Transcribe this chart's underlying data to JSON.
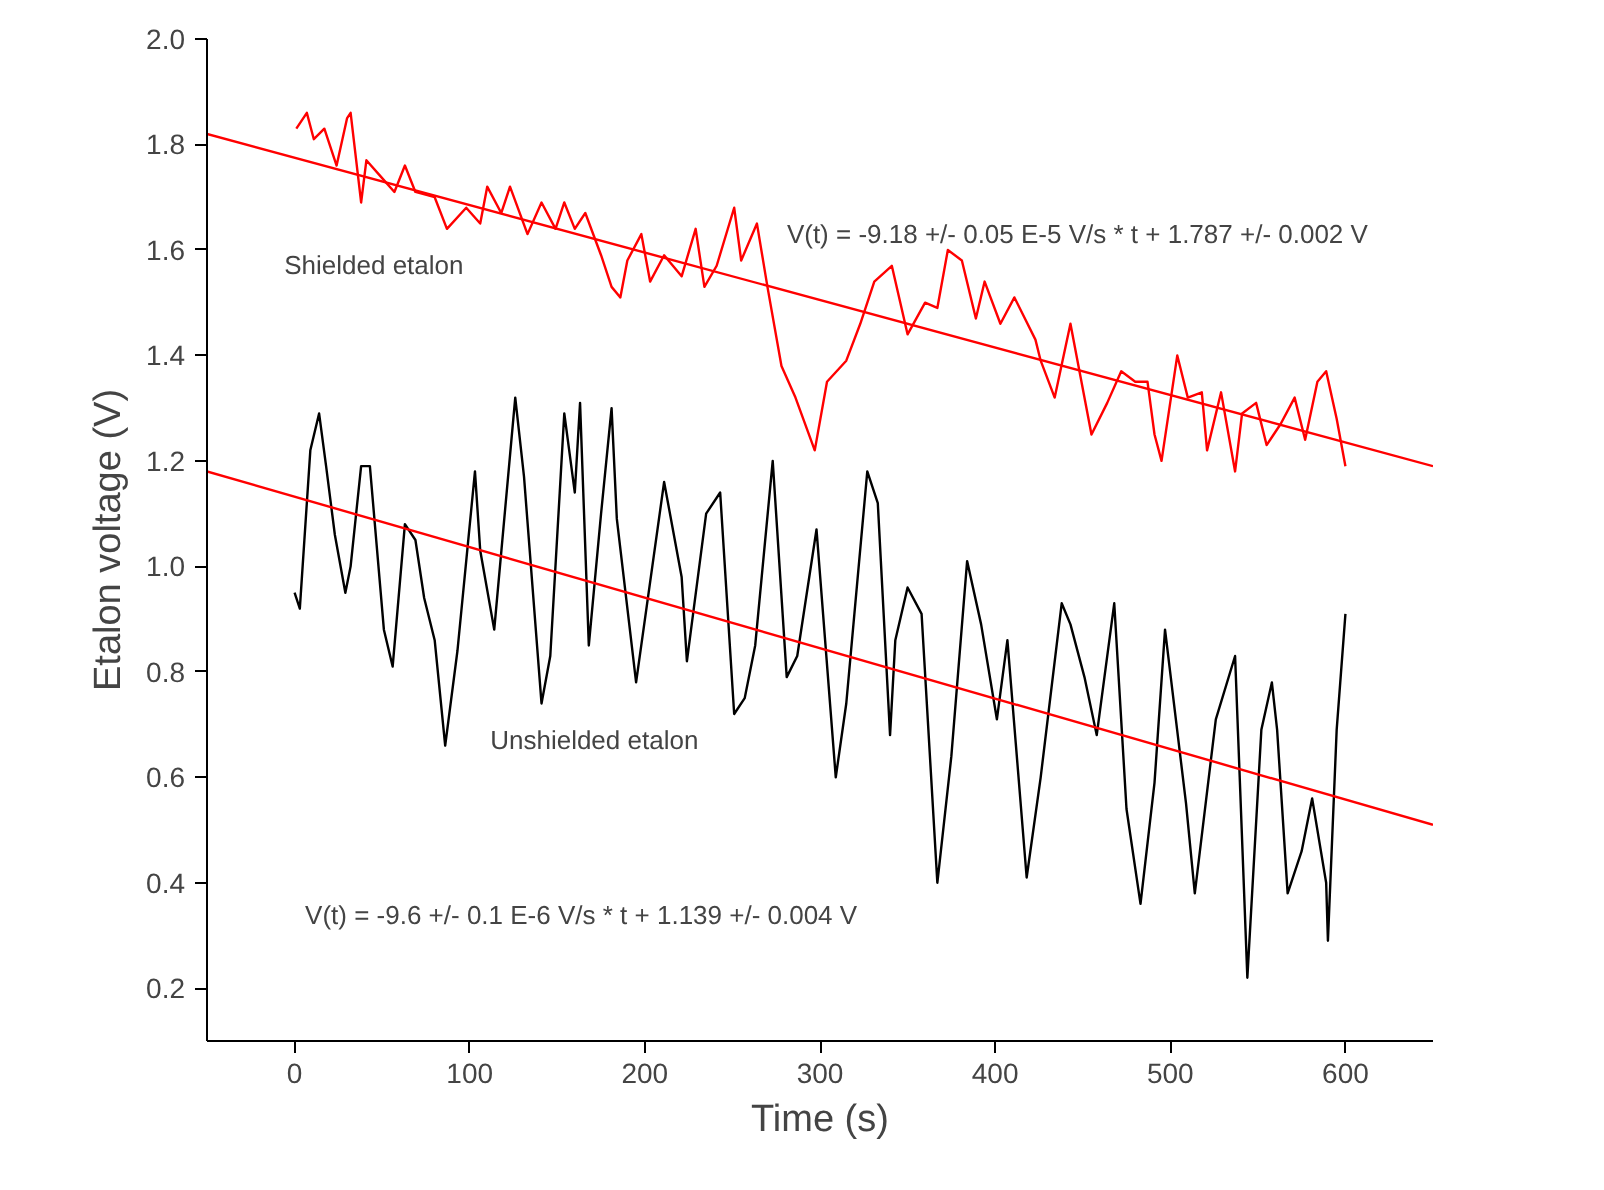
{
  "chart_data": {
    "type": "line",
    "xlabel": "Time (s)",
    "ylabel": "Etalon voltage (V)",
    "xlim": [
      -50,
      650
    ],
    "xticks": [
      0,
      100,
      200,
      300,
      400,
      500,
      600
    ],
    "ylim": [
      0.1,
      2.0
    ],
    "yticks": [
      0.2,
      0.4,
      0.6,
      0.8,
      {
        "value": 1.0,
        "label": "1.0"
      },
      1.2,
      1.4,
      1.6,
      1.8,
      {
        "value": 2.0,
        "label": "2.0"
      }
    ],
    "grid": false,
    "marker": "none",
    "line_style": "solid",
    "series": [
      {
        "color": "#ff0000",
        "x": [
          1,
          7,
          11,
          17,
          24,
          30,
          32,
          38,
          41,
          49,
          57,
          63,
          69,
          80,
          87,
          98,
          106,
          110,
          118,
          123,
          133,
          141,
          149,
          154,
          160,
          166,
          175,
          181,
          186,
          190,
          198,
          203,
          211,
          221,
          229,
          234,
          241,
          251,
          255,
          264,
          270,
          278,
          286,
          297,
          304,
          315,
          323,
          331,
          341,
          350,
          360,
          367,
          373,
          381,
          389,
          394,
          403,
          411,
          423,
          426,
          434,
          443,
          455,
          464,
          472,
          480,
          487,
          491,
          495,
          504,
          510,
          518,
          521,
          529,
          537,
          541,
          549,
          555,
          563,
          571,
          577,
          584,
          589,
          595,
          600
        ],
        "values": [
          1.83,
          1.86,
          1.81,
          1.83,
          1.76,
          1.85,
          1.86,
          1.69,
          1.77,
          1.74,
          1.71,
          1.76,
          1.71,
          1.7,
          1.64,
          1.68,
          1.65,
          1.72,
          1.67,
          1.72,
          1.63,
          1.69,
          1.64,
          1.69,
          1.64,
          1.67,
          1.59,
          1.53,
          1.51,
          1.58,
          1.63,
          1.54,
          1.59,
          1.55,
          1.64,
          1.53,
          1.57,
          1.68,
          1.58,
          1.65,
          1.53,
          1.38,
          1.32,
          1.22,
          1.35,
          1.39,
          1.46,
          1.54,
          1.57,
          1.44,
          1.5,
          1.49,
          1.6,
          1.58,
          1.47,
          1.54,
          1.46,
          1.51,
          1.43,
          1.39,
          1.32,
          1.46,
          1.25,
          1.31,
          1.37,
          1.35,
          1.35,
          1.25,
          1.2,
          1.4,
          1.32,
          1.33,
          1.22,
          1.33,
          1.18,
          1.29,
          1.31,
          1.23,
          1.27,
          1.32,
          1.24,
          1.35,
          1.37,
          1.28,
          1.19
        ]
      },
      {
        "color": "#000000",
        "x": [
          0,
          3,
          9,
          14,
          18,
          23,
          29,
          32,
          38,
          43,
          51,
          56,
          63,
          69,
          74,
          80,
          86,
          93,
          103,
          106,
          114,
          126,
          131,
          141,
          146,
          154,
          160,
          163,
          168,
          175,
          181,
          184,
          195,
          211,
          221,
          224,
          235,
          243,
          251,
          257,
          263,
          273,
          281,
          287,
          298,
          309,
          315,
          327,
          333,
          340,
          343,
          350,
          358,
          367,
          375,
          384,
          392,
          401,
          407,
          418,
          426,
          438,
          443,
          451,
          458,
          468,
          475,
          483,
          491,
          497,
          509,
          514,
          526,
          537,
          544,
          552,
          558,
          561,
          567,
          575,
          581,
          589,
          590,
          595,
          600
        ],
        "values": [
          0.95,
          0.92,
          1.22,
          1.29,
          1.19,
          1.06,
          0.95,
          1.0,
          1.19,
          1.19,
          0.88,
          0.81,
          1.08,
          1.05,
          0.94,
          0.86,
          0.66,
          0.84,
          1.18,
          1.03,
          0.88,
          1.32,
          1.17,
          0.74,
          0.83,
          1.29,
          1.14,
          1.31,
          0.85,
          1.1,
          1.3,
          1.09,
          0.78,
          1.16,
          0.98,
          0.82,
          1.1,
          1.14,
          0.72,
          0.75,
          0.85,
          1.2,
          0.79,
          0.83,
          1.07,
          0.6,
          0.74,
          1.18,
          1.12,
          0.68,
          0.86,
          0.96,
          0.91,
          0.4,
          0.64,
          1.01,
          0.89,
          0.71,
          0.86,
          0.41,
          0.6,
          0.93,
          0.89,
          0.79,
          0.68,
          0.93,
          0.54,
          0.36,
          0.59,
          0.88,
          0.55,
          0.38,
          0.71,
          0.83,
          0.22,
          0.69,
          0.78,
          0.69,
          0.38,
          0.46,
          0.56,
          0.4,
          0.29,
          0.69,
          0.91
        ]
      },
      {
        "type": "line",
        "color": "#ff0000",
        "x": [
          -50,
          650
        ],
        "values": [
          1.82,
          1.19
        ]
      },
      {
        "type": "line",
        "color": "#ff0000",
        "x": [
          -50,
          650
        ],
        "values": [
          1.18,
          0.51
        ]
      }
    ],
    "annotations": [
      "V(t) = -9.18 +/- 0.05 E-5 V/s * t + 1.787 +/- 0.002 V",
      "Shielded etalon",
      "Unshielded etalon",
      "V(t) = -9.6 +/- 0.1 E-6 V/s * t + 1.139 +/- 0.004 V"
    ]
  }
}
